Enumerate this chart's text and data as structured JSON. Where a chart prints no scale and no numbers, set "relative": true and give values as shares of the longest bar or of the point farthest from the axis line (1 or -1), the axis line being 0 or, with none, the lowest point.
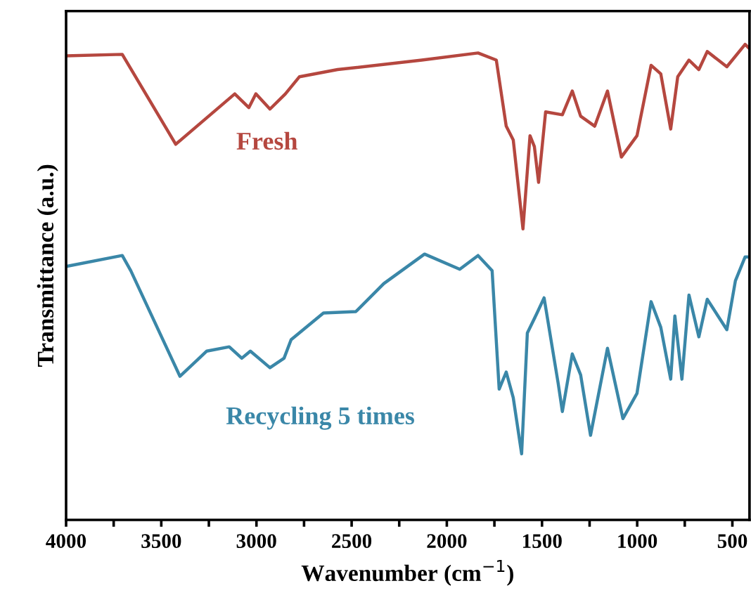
{
  "chart_data": {
    "type": "line",
    "xlabel": "Wavenumber (cm$^{−1}$)",
    "ylabel": "Transmittance (a.u.)",
    "relative": true,
    "tick_labels": "x",
    "grid": false,
    "legend": false,
    "marker": "none",
    "line_style": "solid",
    "xlim": [
      4000,
      410
    ],
    "xticks": [
      4000,
      {
        "value": 3750,
        "label": null
      },
      3500,
      {
        "value": 3250,
        "label": null
      },
      3000,
      {
        "value": 2750,
        "label": null
      },
      2500,
      {
        "value": 2250,
        "label": null
      },
      2000,
      {
        "value": 1750,
        "label": null
      },
      1500,
      {
        "value": 1250,
        "label": null
      },
      1000,
      {
        "value": 750,
        "label": null
      },
      500
    ],
    "series": [
      {
        "name": "Fresh",
        "color": "#b5473f",
        "x": [
          4000,
          3705,
          3424,
          3114,
          3040,
          3003,
          2929,
          2848,
          2774,
          2574,
          2131,
          1836,
          1740,
          1688,
          1651,
          1600,
          1563,
          1540,
          1518,
          1481,
          1393,
          1341,
          1297,
          1223,
          1156,
          1083,
          1001,
          927,
          876,
          824,
          787,
          728,
          676,
          632,
          529,
          433,
          410
        ],
        "values": [
          0.976,
          0.979,
          0.79,
          0.896,
          0.867,
          0.896,
          0.864,
          0.896,
          0.932,
          0.947,
          0.967,
          0.982,
          0.967,
          0.828,
          0.799,
          0.612,
          0.808,
          0.785,
          0.71,
          0.858,
          0.852,
          0.902,
          0.849,
          0.828,
          0.902,
          0.763,
          0.808,
          0.956,
          0.938,
          0.822,
          0.932,
          0.967,
          0.947,
          0.985,
          0.953,
          1.0,
          0.991
        ]
      },
      {
        "name": "Recycling 5 times",
        "color": "#3a87a8",
        "x": [
          4000,
          3705,
          3660,
          3402,
          3261,
          3143,
          3077,
          3032,
          2929,
          2855,
          2818,
          2648,
          2478,
          2331,
          2117,
          1932,
          1836,
          1762,
          1725,
          1688,
          1651,
          1607,
          1577,
          1526,
          1489,
          1415,
          1393,
          1341,
          1297,
          1245,
          1156,
          1075,
          1001,
          927,
          876,
          824,
          802,
          765,
          728,
          676,
          632,
          529,
          484,
          433,
          410
        ],
        "values": [
          0.533,
          0.556,
          0.524,
          0.302,
          0.355,
          0.364,
          0.34,
          0.355,
          0.32,
          0.34,
          0.379,
          0.435,
          0.438,
          0.497,
          0.559,
          0.527,
          0.556,
          0.524,
          0.275,
          0.311,
          0.257,
          0.139,
          0.393,
          0.435,
          0.467,
          0.287,
          0.228,
          0.349,
          0.305,
          0.178,
          0.361,
          0.213,
          0.266,
          0.459,
          0.405,
          0.296,
          0.429,
          0.296,
          0.473,
          0.385,
          0.464,
          0.4,
          0.503,
          0.553,
          0.553
        ]
      }
    ]
  }
}
